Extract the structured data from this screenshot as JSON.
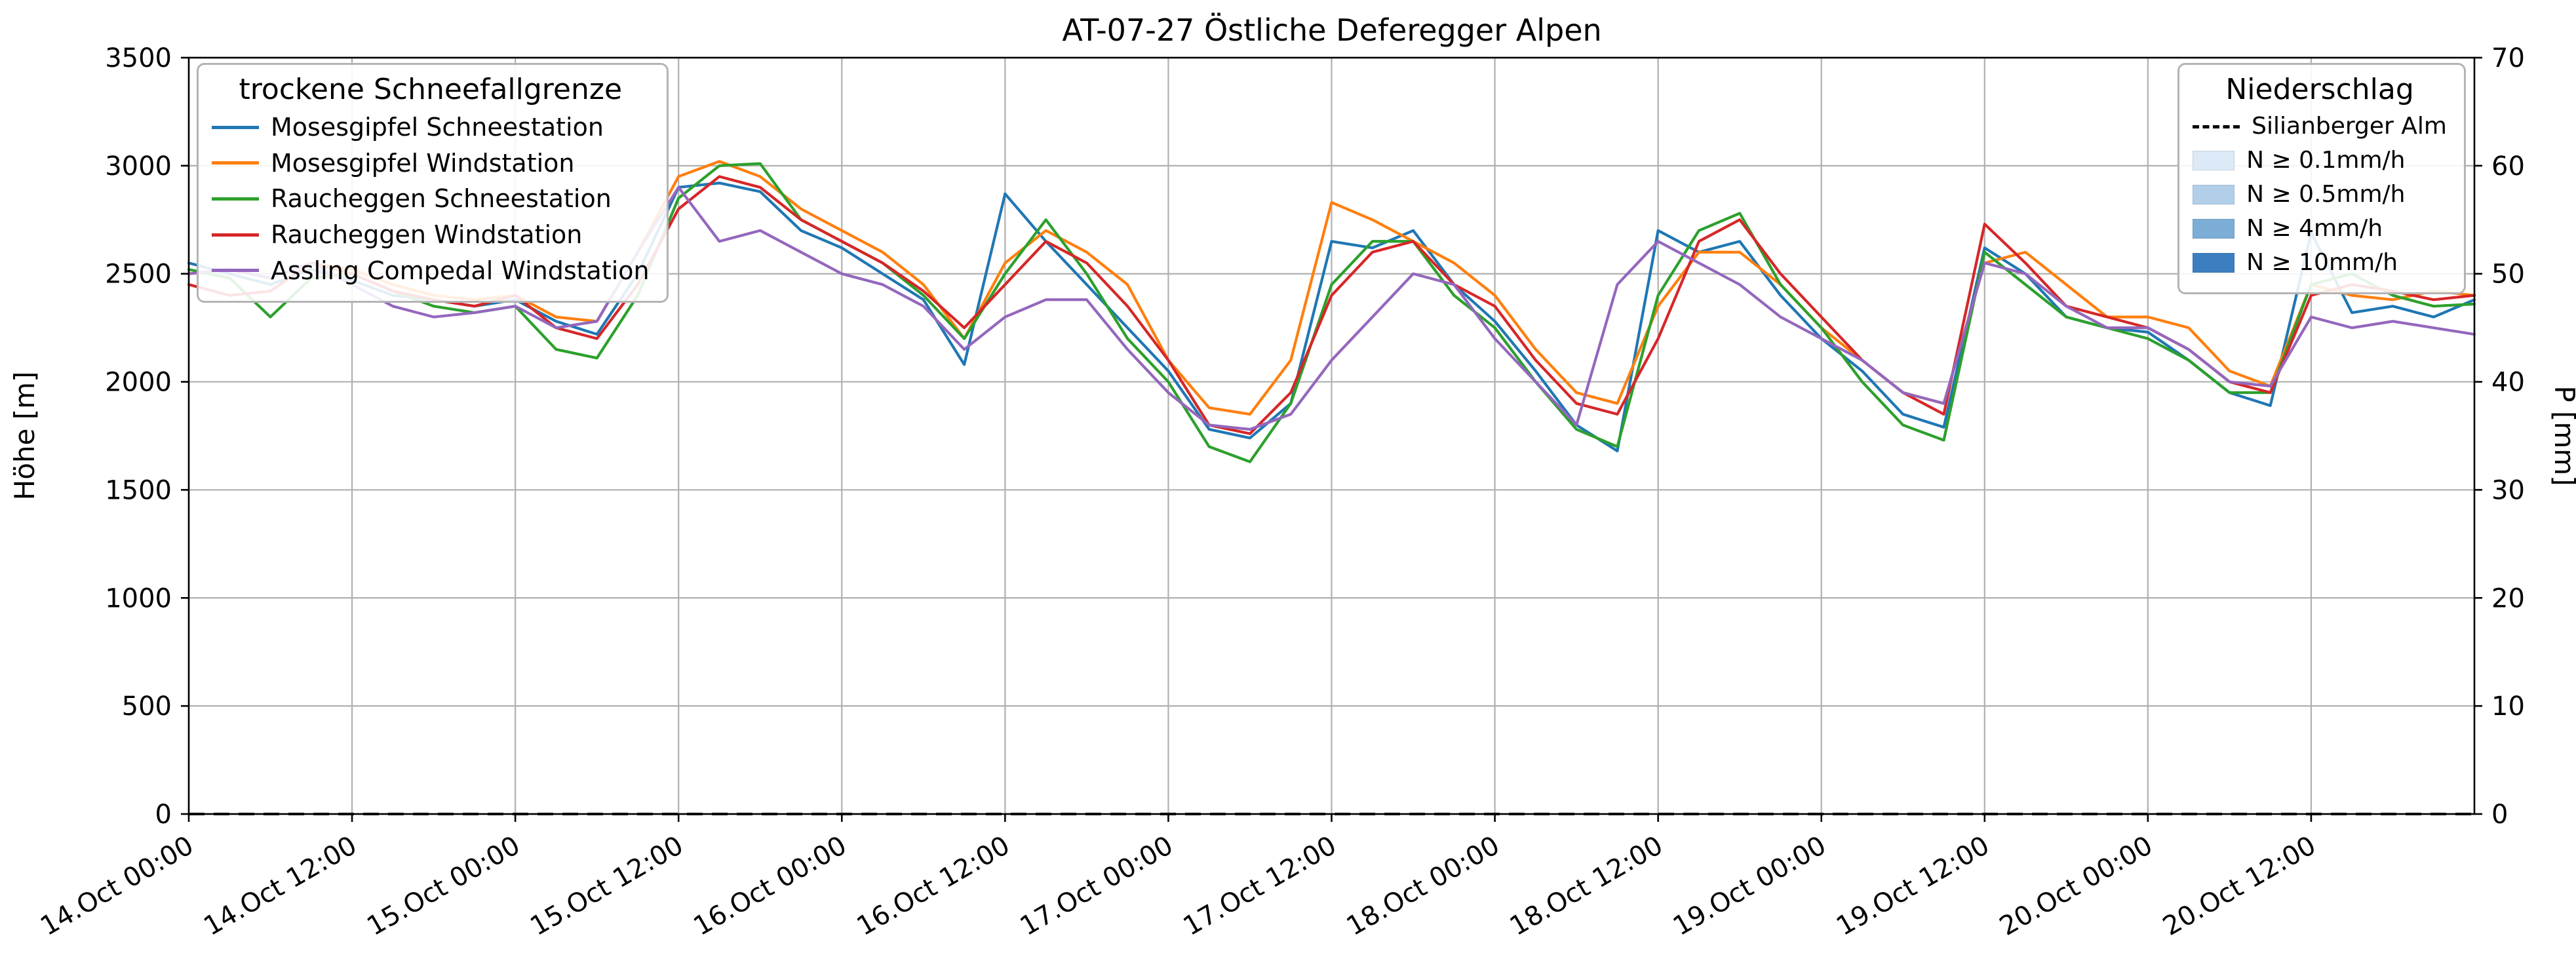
{
  "chart_data": {
    "type": "line",
    "title": "AT-07-27 Östliche Deferegger Alpen",
    "ylabel_left": "Höhe [m]",
    "ylabel_right": "P [mm]",
    "ylim_left": [
      0,
      3500
    ],
    "ylim_right": [
      0,
      70
    ],
    "yticks_left": [
      0,
      500,
      1000,
      1500,
      2000,
      2500,
      3000,
      3500
    ],
    "yticks_right": [
      0,
      10,
      20,
      30,
      40,
      50,
      60,
      70
    ],
    "grid": true,
    "x_unit": "hours since 14.Oct 00:00",
    "x_range_hours": [
      0,
      168
    ],
    "xtick_hours": [
      0,
      12,
      24,
      36,
      48,
      60,
      72,
      84,
      96,
      108,
      120,
      132,
      144,
      156
    ],
    "xtick_labels": [
      "14.Oct 00:00",
      "14.Oct 12:00",
      "15.Oct 00:00",
      "15.Oct 12:00",
      "16.Oct 00:00",
      "16.Oct 12:00",
      "17.Oct 00:00",
      "17.Oct 12:00",
      "18.Oct 00:00",
      "18.Oct 12:00",
      "19.Oct 00:00",
      "19.Oct 12:00",
      "20.Oct 00:00",
      "20.Oct 12:00"
    ],
    "legend_left": {
      "title": "trockene Schneefallgrenze",
      "position": "upper left"
    },
    "legend_right": {
      "title": "Niederschlag",
      "position": "upper right"
    },
    "x_hours": [
      0,
      3,
      6,
      9,
      12,
      15,
      18,
      21,
      24,
      27,
      30,
      33,
      36,
      39,
      42,
      45,
      48,
      51,
      54,
      57,
      60,
      63,
      66,
      69,
      72,
      75,
      78,
      81,
      84,
      87,
      90,
      93,
      96,
      99,
      102,
      105,
      108,
      111,
      114,
      117,
      120,
      123,
      126,
      129,
      132,
      135,
      138,
      141,
      144,
      147,
      150,
      153,
      156,
      159,
      162,
      165,
      168
    ],
    "series": [
      {
        "name": "Mosesgipfel Schneestation",
        "color": "#1f77b4",
        "values": [
          2550,
          2500,
          2450,
          2520,
          2470,
          2400,
          2380,
          2350,
          2380,
          2280,
          2220,
          2500,
          2900,
          2920,
          2880,
          2700,
          2620,
          2500,
          2380,
          2080,
          2870,
          2650,
          2450,
          2250,
          2050,
          1780,
          1740,
          1900,
          2650,
          2620,
          2700,
          2450,
          2280,
          2050,
          1800,
          1680,
          2700,
          2600,
          2650,
          2400,
          2200,
          2050,
          1850,
          1790,
          2620,
          2500,
          2300,
          2250,
          2230,
          2100,
          1950,
          1890,
          2690,
          2320,
          2350,
          2300,
          2380
        ]
      },
      {
        "name": "Mosesgipfel Windstation",
        "color": "#ff7f0e",
        "values": [
          2500,
          2520,
          2480,
          2550,
          2520,
          2450,
          2400,
          2380,
          2400,
          2300,
          2280,
          2600,
          2950,
          3020,
          2950,
          2800,
          2700,
          2600,
          2450,
          2200,
          2550,
          2700,
          2600,
          2450,
          2100,
          1880,
          1850,
          2100,
          2830,
          2750,
          2650,
          2550,
          2400,
          2150,
          1950,
          1900,
          2350,
          2600,
          2600,
          2450,
          2250,
          2100,
          1950,
          1900,
          2550,
          2600,
          2450,
          2300,
          2300,
          2250,
          2050,
          1980,
          2450,
          2400,
          2380,
          2420,
          2400
        ]
      },
      {
        "name": "Raucheggen Schneestation",
        "color": "#2ca02c",
        "values": [
          2520,
          2480,
          2300,
          2480,
          2500,
          2420,
          2350,
          2320,
          2350,
          2150,
          2110,
          2400,
          2850,
          3000,
          3010,
          2750,
          2650,
          2550,
          2400,
          2200,
          2500,
          2750,
          2500,
          2200,
          2000,
          1700,
          1630,
          1900,
          2450,
          2650,
          2650,
          2400,
          2250,
          2000,
          1780,
          1700,
          2400,
          2700,
          2780,
          2450,
          2250,
          2000,
          1800,
          1730,
          2600,
          2450,
          2300,
          2250,
          2200,
          2100,
          1950,
          1950,
          2450,
          2500,
          2400,
          2350,
          2360
        ]
      },
      {
        "name": "Raucheggen Windstation",
        "color": "#d62728",
        "values": [
          2450,
          2400,
          2420,
          2550,
          2500,
          2420,
          2380,
          2350,
          2400,
          2250,
          2200,
          2450,
          2800,
          2950,
          2900,
          2750,
          2650,
          2550,
          2420,
          2250,
          2450,
          2650,
          2550,
          2350,
          2100,
          1800,
          1760,
          1950,
          2400,
          2600,
          2650,
          2450,
          2350,
          2100,
          1900,
          1850,
          2200,
          2650,
          2750,
          2500,
          2300,
          2100,
          1950,
          1850,
          2730,
          2550,
          2350,
          2300,
          2250,
          2150,
          2000,
          1950,
          2400,
          2450,
          2420,
          2380,
          2400
        ]
      },
      {
        "name": "Assling Compedal Windstation",
        "color": "#9467bd",
        "values": [
          2500,
          2520,
          2480,
          2550,
          2450,
          2350,
          2300,
          2320,
          2350,
          2250,
          2280,
          2600,
          2900,
          2650,
          2700,
          2600,
          2500,
          2450,
          2350,
          2150,
          2300,
          2380,
          2380,
          2150,
          1950,
          1800,
          1780,
          1850,
          2100,
          2300,
          2500,
          2450,
          2200,
          2000,
          1800,
          2450,
          2650,
          2550,
          2450,
          2300,
          2200,
          2100,
          1950,
          1900,
          2550,
          2500,
          2350,
          2250,
          2250,
          2150,
          2000,
          1980,
          2300,
          2250,
          2280,
          2250,
          2220
        ]
      }
    ],
    "precipitation": {
      "station": "Silianberger Alm",
      "line_style": "dashed",
      "color": "#000000",
      "x_hours": [
        0,
        168
      ],
      "values_mm": [
        0,
        0
      ]
    },
    "precip_intensity": [
      {
        "label": "N ≥ 0.1mm/h",
        "color": "#dce9f6"
      },
      {
        "label": "N ≥ 0.5mm/h",
        "color": "#b2cfe9"
      },
      {
        "label": "N ≥ 4mm/h",
        "color": "#7cadd6"
      },
      {
        "label": "N ≥ 10mm/h",
        "color": "#3c7fc0"
      }
    ]
  }
}
